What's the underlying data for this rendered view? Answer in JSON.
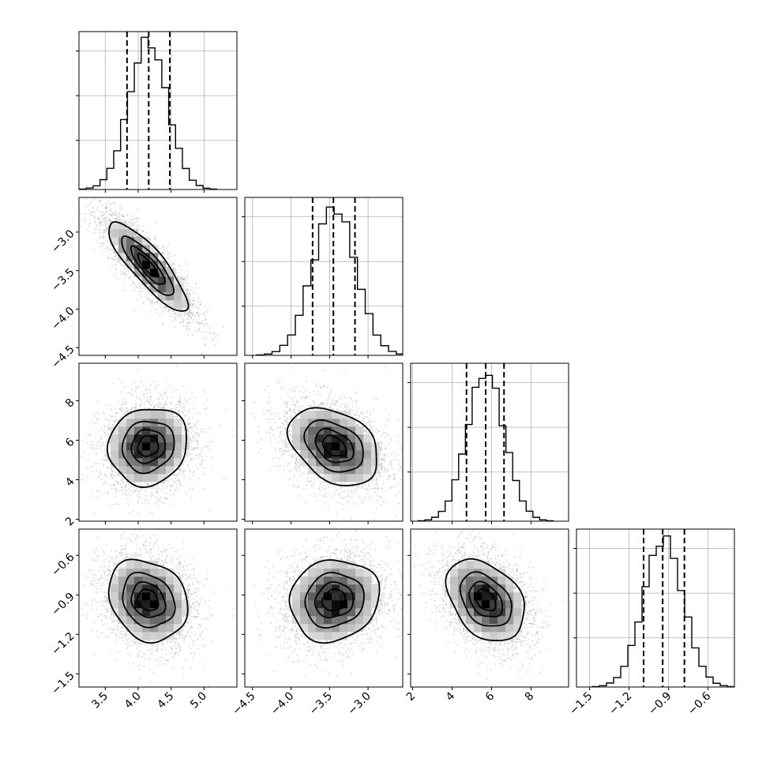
{
  "chart_data": {
    "type": "corner",
    "grid": true,
    "parameters": [
      {
        "range": [
          3.1,
          5.5
        ],
        "ticks": [
          3.5,
          4.0,
          4.5,
          5.0
        ],
        "tick_labels": [
          "3.5",
          "4.0",
          "4.5",
          "5.0"
        ],
        "mean": 4.15,
        "std": 0.29,
        "quantiles": [
          3.83,
          4.16,
          4.48
        ],
        "hist_max": 2550
      },
      {
        "range": [
          -4.6,
          -2.55
        ],
        "ticks": [
          -4.5,
          -4.0,
          -3.5,
          -3.0
        ],
        "tick_labels": [
          "−4.5",
          "−4.0",
          "−3.5",
          "−3.0"
        ],
        "mean": -3.44,
        "std": 0.28,
        "quantiles": [
          -3.72,
          -3.45,
          -3.17
        ],
        "hist_max": 2700
      },
      {
        "range": [
          1.9,
          9.9
        ],
        "ticks": [
          2,
          4,
          6,
          8
        ],
        "tick_labels": [
          "2",
          "4",
          "6",
          "8"
        ],
        "mean": 5.7,
        "std": 0.95,
        "quantiles": [
          4.73,
          5.7,
          6.63
        ],
        "hist_max": 2650
      },
      {
        "range": [
          -1.6,
          -0.4
        ],
        "ticks": [
          -1.5,
          -1.2,
          -0.9,
          -0.6
        ],
        "tick_labels": [
          "−1.5",
          "−1.2",
          "−0.9",
          "−0.6"
        ],
        "mean": -0.94,
        "std": 0.15,
        "quantiles": [
          -1.09,
          -0.945,
          -0.78
        ],
        "hist_max": 2650
      }
    ],
    "correlations": [
      {
        "i": 1,
        "j": 0,
        "rho": -0.85
      },
      {
        "i": 2,
        "j": 0,
        "rho": 0.1
      },
      {
        "i": 2,
        "j": 1,
        "rho": -0.35
      },
      {
        "i": 3,
        "j": 0,
        "rho": -0.2
      },
      {
        "i": 3,
        "j": 1,
        "rho": 0.1
      },
      {
        "i": 3,
        "j": 2,
        "rho": -0.35
      }
    ],
    "contour_levels_sigma": [
      0.5,
      1.0,
      1.5,
      2.0
    ]
  }
}
